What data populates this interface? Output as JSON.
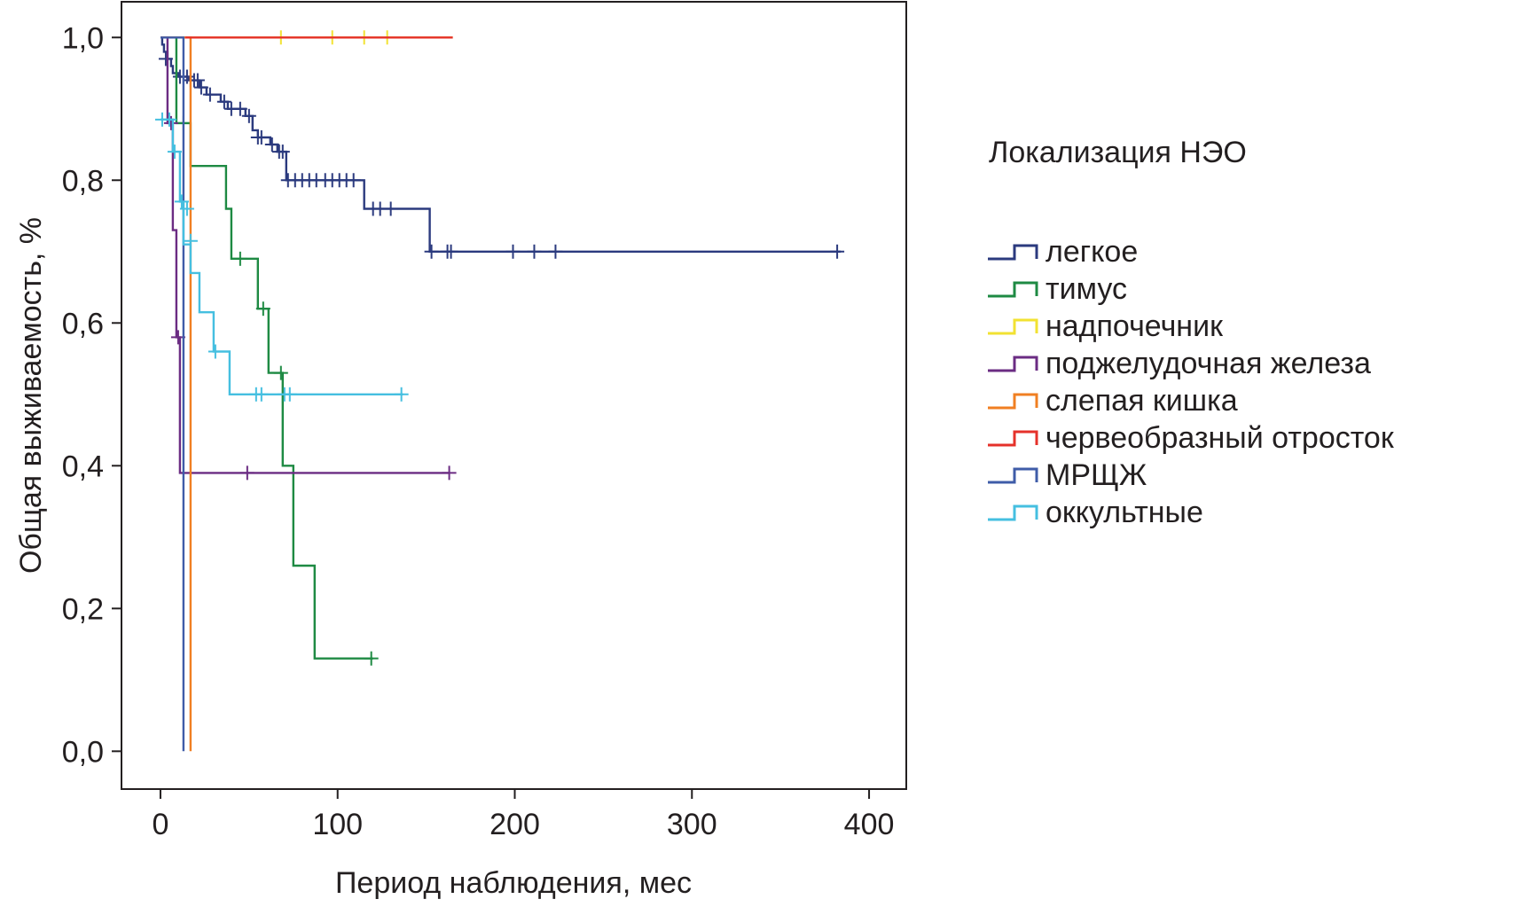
{
  "chart_data": {
    "type": "line",
    "subtype": "kaplan-meier-step",
    "xlabel": "Период наблюдения, мес",
    "ylabel": "Общая выживаемость, %",
    "xlim": [
      -22,
      421
    ],
    "ylim": [
      -0.053,
      1.05
    ],
    "x_ticks": [
      0,
      100,
      200,
      300,
      400
    ],
    "x_tick_labels": [
      "0",
      "100",
      "200",
      "300",
      "400"
    ],
    "y_ticks": [
      0,
      0.2,
      0.4,
      0.6,
      0.8,
      1.0
    ],
    "y_tick_labels": [
      "0,0",
      "0,2",
      "0,4",
      "0,6",
      "0,8",
      "1,0"
    ],
    "grid": false,
    "legend_title": "Локализация НЭО",
    "legend_position": "right",
    "series": [
      {
        "name": "легкое",
        "color": "#2b3a7e",
        "steps": [
          [
            0,
            1.0
          ],
          [
            1,
            0.99
          ],
          [
            2,
            0.98
          ],
          [
            4,
            0.97
          ],
          [
            6,
            0.96
          ],
          [
            7,
            0.95
          ],
          [
            10,
            0.945
          ],
          [
            16,
            0.94
          ],
          [
            22,
            0.93
          ],
          [
            26,
            0.92
          ],
          [
            34,
            0.91
          ],
          [
            38,
            0.9
          ],
          [
            48,
            0.89
          ],
          [
            52,
            0.87
          ],
          [
            55,
            0.86
          ],
          [
            62,
            0.85
          ],
          [
            66,
            0.84
          ],
          [
            71,
            0.8
          ],
          [
            115,
            0.76
          ],
          [
            152,
            0.7
          ],
          [
            384,
            0.7
          ]
        ],
        "censored": [
          [
            3,
            0.97
          ],
          [
            11,
            0.945
          ],
          [
            13,
            0.945
          ],
          [
            15,
            0.945
          ],
          [
            17,
            0.94
          ],
          [
            19,
            0.94
          ],
          [
            21,
            0.94
          ],
          [
            23,
            0.93
          ],
          [
            28,
            0.92
          ],
          [
            36,
            0.91
          ],
          [
            40,
            0.9
          ],
          [
            45,
            0.9
          ],
          [
            50,
            0.89
          ],
          [
            55,
            0.86
          ],
          [
            57,
            0.86
          ],
          [
            63,
            0.85
          ],
          [
            67,
            0.84
          ],
          [
            69,
            0.84
          ],
          [
            72,
            0.8
          ],
          [
            76,
            0.8
          ],
          [
            80,
            0.8
          ],
          [
            84,
            0.8
          ],
          [
            88,
            0.8
          ],
          [
            93,
            0.8
          ],
          [
            97,
            0.8
          ],
          [
            101,
            0.8
          ],
          [
            105,
            0.8
          ],
          [
            109,
            0.8
          ],
          [
            120,
            0.76
          ],
          [
            124,
            0.76
          ],
          [
            130,
            0.76
          ],
          [
            153,
            0.7
          ],
          [
            162,
            0.7
          ],
          [
            164,
            0.7
          ],
          [
            199,
            0.7
          ],
          [
            211,
            0.7
          ],
          [
            223,
            0.7
          ],
          [
            382,
            0.7
          ]
        ]
      },
      {
        "name": "тимус",
        "color": "#1e8a43",
        "steps": [
          [
            0,
            1.0
          ],
          [
            9,
            0.88
          ],
          [
            17,
            0.82
          ],
          [
            37,
            0.76
          ],
          [
            40,
            0.69
          ],
          [
            55,
            0.62
          ],
          [
            61,
            0.53
          ],
          [
            69,
            0.4
          ],
          [
            75,
            0.26
          ],
          [
            87,
            0.13
          ],
          [
            120,
            0.13
          ]
        ],
        "censored": [
          [
            13,
            0.88
          ],
          [
            45,
            0.69
          ],
          [
            58,
            0.62
          ],
          [
            68,
            0.53
          ],
          [
            119,
            0.13
          ]
        ]
      },
      {
        "name": "надпочечник",
        "color": "#f2e232",
        "steps": [
          [
            0,
            1.0
          ],
          [
            165,
            1.0
          ]
        ],
        "censored": [
          [
            68,
            1.0
          ],
          [
            97,
            1.0
          ],
          [
            115,
            1.0
          ],
          [
            128,
            1.0
          ]
        ]
      },
      {
        "name": "поджелудочная железа",
        "color": "#6b2c83",
        "steps": [
          [
            0,
            1.0
          ],
          [
            4,
            0.88
          ],
          [
            7,
            0.73
          ],
          [
            9,
            0.58
          ],
          [
            11,
            0.39
          ],
          [
            163,
            0.39
          ]
        ],
        "censored": [
          [
            6,
            0.88
          ],
          [
            10,
            0.58
          ],
          [
            49,
            0.39
          ],
          [
            163,
            0.39
          ]
        ]
      },
      {
        "name": "слепая кишка",
        "color": "#f07f22",
        "steps": [
          [
            0,
            1.0
          ],
          [
            17,
            1.0
          ],
          [
            17,
            0.0
          ]
        ],
        "censored": []
      },
      {
        "name": "червеобразный отросток",
        "color": "#e5312a",
        "steps": [
          [
            14,
            1.0
          ],
          [
            165,
            1.0
          ]
        ],
        "censored": []
      },
      {
        "name": "МРЩЖ",
        "color": "#3f5ca8",
        "steps": [
          [
            0,
            1.0
          ],
          [
            13,
            1.0
          ],
          [
            13,
            0.0
          ]
        ],
        "censored": []
      },
      {
        "name": "оккультные",
        "color": "#45bfe0",
        "steps": [
          [
            0,
            0.885
          ],
          [
            7,
            0.84
          ],
          [
            11,
            0.77
          ],
          [
            13,
            0.71
          ],
          [
            17,
            0.67
          ],
          [
            22,
            0.615
          ],
          [
            30,
            0.56
          ],
          [
            39,
            0.5
          ],
          [
            137,
            0.5
          ]
        ],
        "censored": [
          [
            1,
            0.885
          ],
          [
            5,
            0.885
          ],
          [
            8,
            0.84
          ],
          [
            12,
            0.77
          ],
          [
            15,
            0.76
          ],
          [
            17,
            0.715
          ],
          [
            31,
            0.56
          ],
          [
            54,
            0.5
          ],
          [
            57,
            0.5
          ],
          [
            70,
            0.5
          ],
          [
            73,
            0.5
          ],
          [
            136,
            0.5
          ]
        ]
      }
    ]
  }
}
